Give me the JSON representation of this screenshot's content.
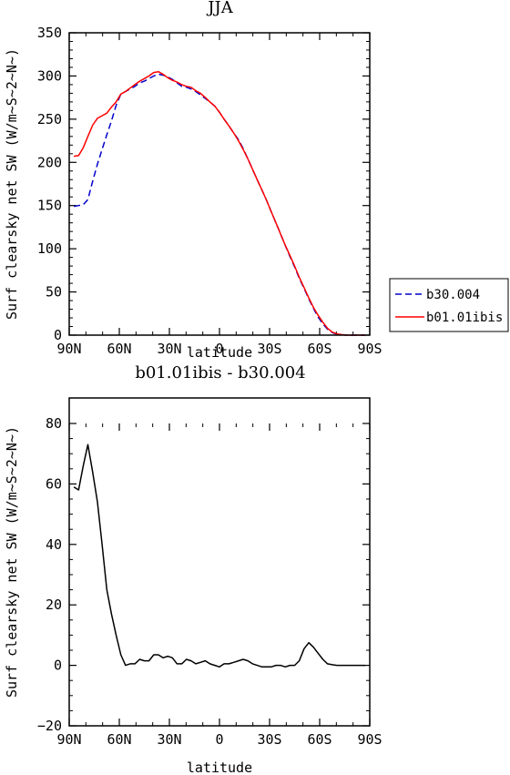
{
  "chart_data": [
    {
      "type": "line",
      "title": "JJA",
      "xlabel": "latitude",
      "ylabel": "Surf clearsky net SW (W/m~S~2~N~)",
      "x_tick_labels": [
        "90N",
        "60N",
        "30N",
        "0",
        "30S",
        "60S",
        "90S"
      ],
      "xlim": [
        90,
        -90
      ],
      "ylim": [
        0,
        350
      ],
      "y_ticks": [
        0,
        50,
        100,
        150,
        200,
        250,
        300,
        350
      ],
      "legend": "right-outside",
      "series": [
        {
          "name": "b30.004",
          "color": "#0000cc",
          "dash": "dashed",
          "x": [
            87.2,
            84.4,
            81.6,
            78.8,
            76.0,
            73.1,
            70.3,
            67.5,
            64.7,
            61.9,
            59.1,
            56.3,
            53.5,
            50.7,
            47.8,
            45.0,
            42.2,
            39.4,
            36.6,
            33.8,
            31.0,
            28.2,
            25.4,
            22.6,
            19.8,
            17.0,
            14.2,
            11.4,
            8.5,
            5.7,
            2.8,
            0,
            -2.8,
            -5.7,
            -8.5,
            -11.4,
            -14.2,
            -17.0,
            -19.8,
            -22.6,
            -25.4,
            -28.2,
            -31.0,
            -33.8,
            -36.6,
            -39.4,
            -42.2,
            -45.0,
            -47.8,
            -50.7,
            -53.5,
            -56.3,
            -59.1,
            -61.9,
            -64.7,
            -67.5,
            -70.3,
            -73.1,
            -76.0,
            -78.8,
            -81.6,
            -84.4,
            -87.2
          ],
          "y": [
            149,
            150,
            151,
            157,
            178,
            198,
            215,
            232,
            248,
            266,
            279,
            282,
            285,
            288,
            292,
            294,
            297,
            300,
            302,
            301,
            299,
            296,
            292,
            288,
            287,
            285,
            282,
            278,
            274,
            270,
            265,
            258,
            250,
            242,
            234,
            226,
            216,
            204,
            192,
            180,
            168,
            156,
            143,
            130,
            117,
            104,
            91,
            79,
            66,
            54,
            42,
            31,
            21,
            13,
            7,
            3,
            1,
            0.5,
            0,
            0,
            0,
            0,
            0
          ]
        },
        {
          "name": "b01.01ibis",
          "color": "#ff0000",
          "dash": "solid",
          "x": [
            87.2,
            84.4,
            81.6,
            78.8,
            76.0,
            73.1,
            70.3,
            67.5,
            64.7,
            61.9,
            59.1,
            56.3,
            53.5,
            50.7,
            47.8,
            45.0,
            42.2,
            39.4,
            36.6,
            33.8,
            31.0,
            28.2,
            25.4,
            22.6,
            19.8,
            17.0,
            14.2,
            11.4,
            8.5,
            5.7,
            2.8,
            0,
            -2.8,
            -5.7,
            -8.5,
            -11.4,
            -14.2,
            -17.0,
            -19.8,
            -22.6,
            -25.4,
            -28.2,
            -31.0,
            -33.8,
            -36.6,
            -39.4,
            -42.2,
            -45.0,
            -47.8,
            -50.7,
            -53.5,
            -56.3,
            -59.1,
            -61.9,
            -64.7,
            -67.5,
            -70.3,
            -73.1,
            -76.0,
            -78.8,
            -81.6,
            -84.4,
            -87.2
          ],
          "y": [
            207,
            208,
            217,
            230,
            243,
            251,
            254,
            257,
            264,
            270,
            279,
            282,
            286,
            290,
            294,
            297,
            300,
            304,
            305,
            302,
            298,
            295,
            293,
            290,
            288,
            287,
            283,
            280,
            275,
            270,
            265,
            258,
            250,
            242,
            234,
            225,
            215,
            204,
            192,
            180,
            168,
            156,
            143,
            130,
            117,
            104,
            92,
            80,
            67,
            55,
            43,
            32,
            23,
            15,
            8,
            3.5,
            1.5,
            0.5,
            0,
            0,
            0,
            0,
            0
          ]
        }
      ]
    },
    {
      "type": "line",
      "title": "b01.01ibis - b30.004",
      "xlabel": "latitude",
      "ylabel": "Surf clearsky net SW (W/m~S~2~N~)",
      "x_tick_labels": [
        "90N",
        "60N",
        "30N",
        "0",
        "30S",
        "60S",
        "90S"
      ],
      "xlim": [
        90,
        -90
      ],
      "ylim": [
        -20,
        80
      ],
      "y_ticks": [
        -20,
        0,
        20,
        40,
        60,
        80
      ],
      "series": [
        {
          "color": "#000000",
          "x": [
            87.2,
            84.4,
            81.6,
            78.8,
            76.0,
            73.1,
            70.3,
            67.5,
            64.7,
            61.9,
            59.1,
            56.3,
            53.5,
            50.7,
            47.8,
            45.0,
            42.2,
            39.4,
            36.6,
            33.8,
            31.0,
            28.2,
            25.4,
            22.6,
            19.8,
            17.0,
            14.2,
            11.4,
            8.5,
            5.7,
            2.8,
            0,
            -2.8,
            -5.7,
            -8.5,
            -11.4,
            -14.2,
            -17.0,
            -19.8,
            -22.6,
            -25.4,
            -28.2,
            -31.0,
            -33.8,
            -36.6,
            -39.4,
            -42.2,
            -45.0,
            -47.8,
            -50.7,
            -53.5,
            -56.3,
            -59.1,
            -61.9,
            -64.7,
            -67.5,
            -70.3,
            -73.1,
            -76.0,
            -78.8,
            -81.6,
            -84.4,
            -87.2
          ],
          "y": [
            59,
            58,
            66,
            73,
            64,
            54,
            40,
            25,
            17,
            10,
            3.5,
            0,
            0.5,
            0.5,
            2,
            1.5,
            1.5,
            3.5,
            3.5,
            2.5,
            3,
            2.5,
            0.5,
            0.5,
            2,
            1.5,
            0.5,
            1,
            1.5,
            0.5,
            0,
            -0.5,
            0.5,
            0.5,
            1,
            1.5,
            2,
            1.5,
            0.5,
            0,
            -0.5,
            -0.5,
            -0.5,
            0,
            0,
            -0.5,
            0,
            0,
            1.5,
            5.5,
            7.5,
            6,
            4,
            2,
            0.5,
            0.2,
            0,
            0,
            0,
            0,
            0,
            0,
            0
          ]
        }
      ]
    }
  ]
}
